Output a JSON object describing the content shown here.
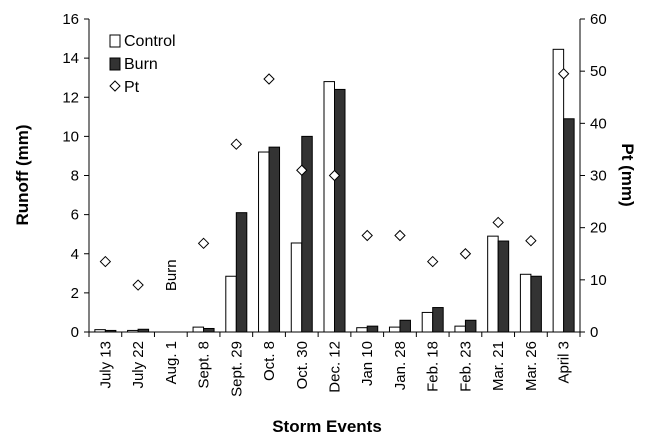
{
  "chart_data": {
    "type": "bar",
    "title": "",
    "xlabel": "Storm Events",
    "ylabel": "Runoff (mm)",
    "y2label": "Pt (mm)",
    "ylim": [
      0,
      16
    ],
    "y2lim": [
      0,
      60
    ],
    "yticks": [
      "0",
      "2",
      "4",
      "6",
      "8",
      "10",
      "12",
      "14",
      "16"
    ],
    "y2ticks": [
      "0",
      "10",
      "20",
      "30",
      "40",
      "50",
      "60"
    ],
    "categories": [
      "July 13",
      "July 22",
      "Aug. 1",
      "Sept. 8",
      "Sept. 29",
      "Oct. 8",
      "Oct. 30",
      "Dec. 12",
      "Jan 10",
      "Jan. 28",
      "Feb. 18",
      "Feb. 23",
      "Mar. 21",
      "Mar. 26",
      "April 3"
    ],
    "series": [
      {
        "name": "Control",
        "kind": "bar",
        "color": "#ffffff",
        "axis": "left",
        "values": [
          0.12,
          0.08,
          0,
          0.25,
          2.85,
          9.2,
          4.55,
          12.8,
          0.22,
          0.25,
          1.0,
          0.3,
          4.9,
          2.95,
          14.45
        ]
      },
      {
        "name": "Burn",
        "kind": "bar",
        "color": "#333333",
        "axis": "left",
        "values": [
          0.08,
          0.14,
          0,
          0.18,
          6.1,
          9.45,
          10.0,
          12.4,
          0.3,
          0.6,
          1.25,
          0.6,
          4.65,
          2.85,
          10.9
        ]
      },
      {
        "name": "Pt",
        "kind": "scatter",
        "marker": "diamond",
        "axis": "right",
        "values": [
          13.5,
          9,
          null,
          17,
          36,
          48.5,
          31,
          30,
          18.5,
          18.5,
          13.5,
          15,
          21,
          17.5,
          49.5
        ]
      }
    ],
    "annotations": [
      {
        "text": "Burn",
        "category": "Aug. 1"
      }
    ],
    "legend": "top-left",
    "grid": false
  }
}
